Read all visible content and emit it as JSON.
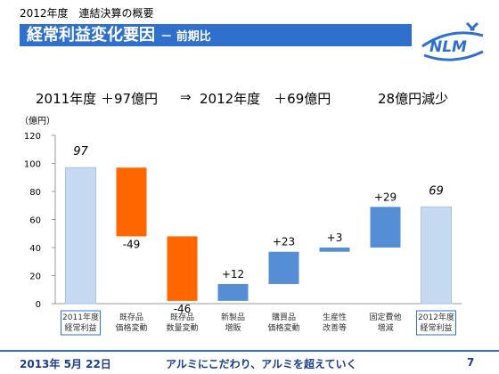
{
  "header": {
    "top_label": "2012年度　連結決算の概要",
    "title": "経常利益変化要因",
    "subtitle": "－ 前期比",
    "logo_text": "NLM"
  },
  "summary": {
    "left": "2011年度 ＋97億円",
    "arrow": "⇒",
    "middle": "2012年度　＋69億円",
    "right": "28億円減少"
  },
  "footer": {
    "date": "2013年 5月 22日",
    "slogan": "アルミにこだわり、アルミを超えていく",
    "page": "7"
  },
  "colors": {
    "banner": "#2f70cc",
    "total_fill": "#c5d9f1",
    "decrease": "#ff6600",
    "increase": "#558ed5"
  },
  "chart_data": {
    "type": "bar",
    "subtype": "waterfall",
    "unit_label": "（億円）",
    "ylim": [
      0,
      120
    ],
    "yticks": [
      0,
      20,
      40,
      60,
      80,
      100,
      120
    ],
    "categories": [
      [
        "2011年度",
        "経常利益"
      ],
      [
        "既存品",
        "価格変動"
      ],
      [
        "既存品",
        "数量変動"
      ],
      [
        "新製品",
        "増販"
      ],
      [
        "購買品",
        "価格変動"
      ],
      [
        "生産性",
        "改善等"
      ],
      [
        "固定費他",
        "増減"
      ],
      [
        "2012年度",
        "経常利益"
      ]
    ],
    "values": [
      97,
      -49,
      -46,
      12,
      23,
      3,
      29,
      69
    ],
    "value_labels": [
      "97",
      "-49",
      "-46",
      "+12",
      "+23",
      "+3",
      "+29",
      "69"
    ],
    "kinds": [
      "total",
      "change",
      "change",
      "change",
      "change",
      "change",
      "change",
      "total"
    ]
  }
}
